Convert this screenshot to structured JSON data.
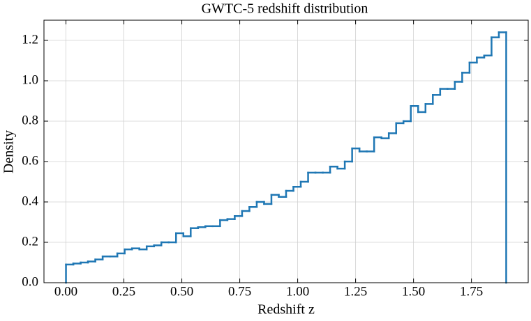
{
  "chart_data": {
    "type": "histogram",
    "title": "GWTC-5 redshift distribution",
    "xlabel": "Redshift z",
    "ylabel": "Density",
    "color": "#1f77b4",
    "grid": true,
    "bins": [
      0,
      0.03167,
      0.06333,
      0.095,
      0.12667,
      0.15833,
      0.19,
      0.22167,
      0.25333,
      0.285,
      0.31667,
      0.34833,
      0.38,
      0.41167,
      0.44333,
      0.475,
      0.50667,
      0.53833,
      0.57,
      0.60167,
      0.63333,
      0.665,
      0.69667,
      0.72833,
      0.76,
      0.79167,
      0.82333,
      0.855,
      0.88667,
      0.91833,
      0.95,
      0.98167,
      1.01333,
      1.045,
      1.07667,
      1.10833,
      1.14,
      1.17167,
      1.20333,
      1.235,
      1.26667,
      1.29833,
      1.33,
      1.36167,
      1.39333,
      1.425,
      1.45667,
      1.48833,
      1.52,
      1.55167,
      1.58333,
      1.615,
      1.64667,
      1.67833,
      1.71,
      1.74167,
      1.77333,
      1.805,
      1.83667,
      1.86833,
      1.9
    ],
    "values": [
      0.09,
      0.095,
      0.1,
      0.105,
      0.115,
      0.13,
      0.13,
      0.145,
      0.165,
      0.17,
      0.165,
      0.18,
      0.185,
      0.2,
      0.2,
      0.245,
      0.23,
      0.27,
      0.275,
      0.28,
      0.28,
      0.31,
      0.315,
      0.33,
      0.355,
      0.375,
      0.4,
      0.39,
      0.435,
      0.425,
      0.455,
      0.475,
      0.5,
      0.545,
      0.545,
      0.545,
      0.575,
      0.565,
      0.6,
      0.665,
      0.65,
      0.65,
      0.72,
      0.715,
      0.74,
      0.79,
      0.8,
      0.875,
      0.845,
      0.885,
      0.93,
      0.96,
      0.96,
      0.995,
      1.04,
      1.09,
      1.115,
      1.125,
      1.215,
      1.24
    ],
    "xlim": [
      -0.095,
      1.995
    ],
    "ylim": [
      0,
      1.3
    ],
    "xticks": [
      {
        "value": 0,
        "label": "0.00"
      },
      {
        "value": 0.25,
        "label": "0.25"
      },
      {
        "value": 0.5,
        "label": "0.50"
      },
      {
        "value": 0.75,
        "label": "0.75"
      },
      {
        "value": 1,
        "label": "1.00"
      },
      {
        "value": 1.25,
        "label": "1.25"
      },
      {
        "value": 1.5,
        "label": "1.50"
      },
      {
        "value": 1.75,
        "label": "1.75"
      }
    ],
    "yticks": [
      {
        "value": 0,
        "label": "0.0"
      },
      {
        "value": 0.2,
        "label": "0.2"
      },
      {
        "value": 0.4,
        "label": "0.4"
      },
      {
        "value": 0.6,
        "label": "0.6"
      },
      {
        "value": 0.8,
        "label": "0.8"
      },
      {
        "value": 1,
        "label": "1.0"
      },
      {
        "value": 1.2,
        "label": "1.2"
      }
    ]
  }
}
